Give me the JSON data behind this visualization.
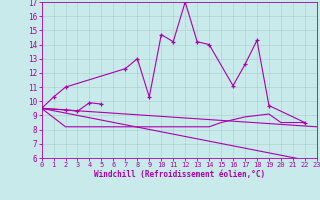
{
  "xlabel": "Windchill (Refroidissement éolien,°C)",
  "background_color": "#c8eaea",
  "line_color": "#aa00aa",
  "grid_color": "#aacccc",
  "xlim": [
    0,
    23
  ],
  "ylim": [
    6,
    17
  ],
  "yticks": [
    6,
    7,
    8,
    9,
    10,
    11,
    12,
    13,
    14,
    15,
    16,
    17
  ],
  "xticks": [
    0,
    1,
    2,
    3,
    4,
    5,
    6,
    7,
    8,
    9,
    10,
    11,
    12,
    13,
    14,
    15,
    16,
    17,
    18,
    19,
    20,
    21,
    22,
    23
  ],
  "series": [
    {
      "x": [
        0,
        1,
        2,
        7,
        8,
        9,
        10,
        11,
        12,
        13,
        14,
        16,
        17,
        18,
        19,
        22
      ],
      "y": [
        9.5,
        10.3,
        11.0,
        12.3,
        13.0,
        10.3,
        14.7,
        14.2,
        17.0,
        14.2,
        14.0,
        11.1,
        12.6,
        14.3,
        9.7,
        8.5
      ],
      "has_markers": true
    },
    {
      "x": [
        0,
        2,
        3,
        4,
        5
      ],
      "y": [
        9.5,
        9.4,
        9.3,
        9.9,
        9.8
      ],
      "has_markers": true
    },
    {
      "x": [
        0,
        2,
        3,
        4,
        5,
        6,
        7,
        8,
        9,
        10,
        11,
        12,
        13,
        14,
        15,
        16,
        17,
        18,
        19,
        20,
        21,
        22
      ],
      "y": [
        9.5,
        8.2,
        8.2,
        8.2,
        8.2,
        8.2,
        8.2,
        8.2,
        8.2,
        8.2,
        8.2,
        8.2,
        8.2,
        8.2,
        8.5,
        8.7,
        8.9,
        9.0,
        9.1,
        8.5,
        8.5,
        8.5
      ],
      "has_markers": false
    },
    {
      "x": [
        0,
        23
      ],
      "y": [
        9.5,
        5.7
      ],
      "has_markers": false
    },
    {
      "x": [
        0,
        23
      ],
      "y": [
        9.5,
        8.2
      ],
      "has_markers": false
    }
  ]
}
